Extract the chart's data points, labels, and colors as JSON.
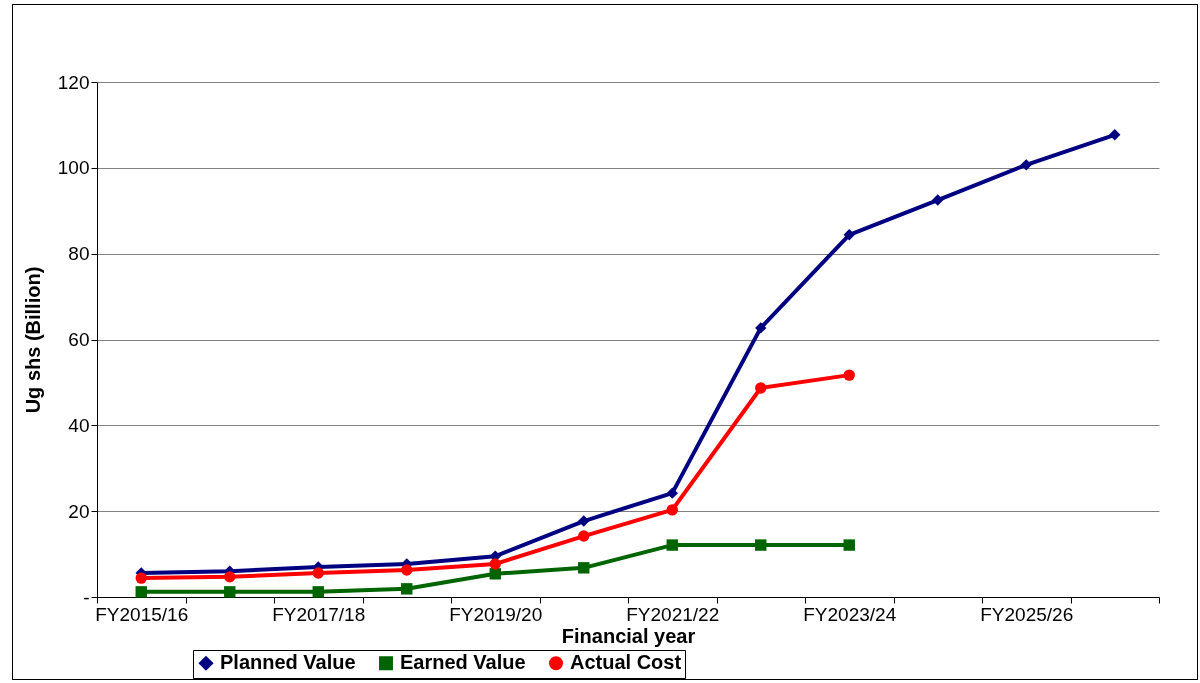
{
  "chart_data": {
    "type": "line",
    "xlabel": "Financial year",
    "ylabel": "Ug shs (Billion)",
    "categories": [
      "FY2015/16",
      null,
      "FY2017/18",
      null,
      "FY2019/20",
      null,
      "FY2021/22",
      null,
      "FY2023/24",
      null,
      "FY2025/26",
      null
    ],
    "series": [
      {
        "name": "Planned Value",
        "color": "#000080",
        "marker": "diamond",
        "values": [
          5.6,
          6,
          7,
          7.7,
          9.5,
          17.7,
          24.2,
          62.7,
          84.4,
          92.5,
          100.7,
          107.7
        ]
      },
      {
        "name": "Earned Value",
        "color": "#006400",
        "marker": "square",
        "values": [
          1.2,
          1.2,
          1.2,
          1.9,
          5.4,
          6.8,
          12.1,
          12.1,
          12.1,
          null,
          null,
          null
        ]
      },
      {
        "name": "Actual Cost",
        "color": "#ff0000",
        "marker": "circle",
        "values": [
          4.4,
          4.7,
          5.6,
          6.3,
          7.7,
          14.2,
          20.3,
          48.7,
          51.7,
          null,
          null,
          null
        ]
      }
    ],
    "ylim": [
      0,
      120
    ],
    "yticks": [
      {
        "value": 0,
        "label": "-"
      },
      20,
      40,
      60,
      80,
      100,
      120
    ],
    "grid": "y",
    "legend": "bottom",
    "line_style": "solid"
  }
}
